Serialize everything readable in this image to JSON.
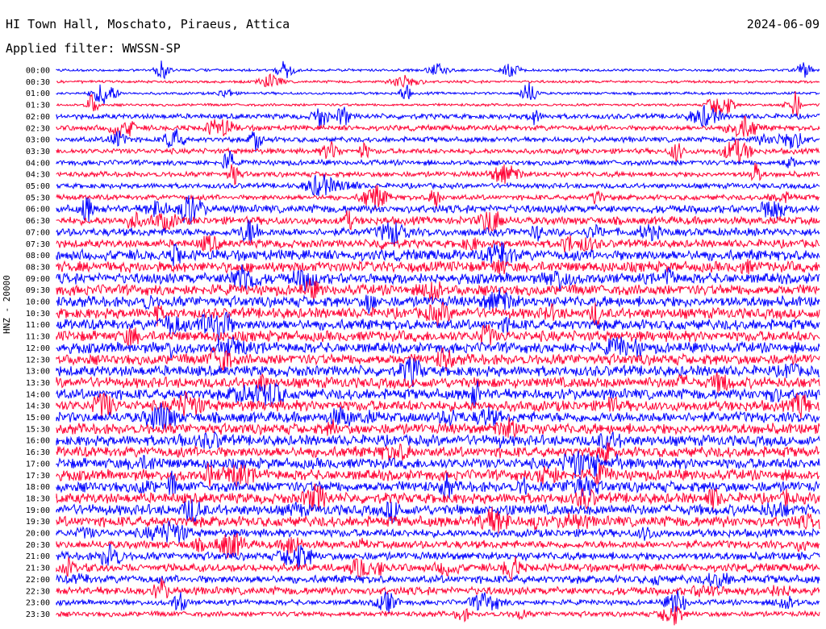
{
  "header": {
    "station": "HI Town Hall, Moschato, Piraeus, Attica",
    "date": "2024-06-09",
    "filter": "Applied filter: WWSSN-SP"
  },
  "chart_data": {
    "type": "line",
    "title": "HI Town Hall, Moschato, Piraeus, Attica",
    "ylabel": "HNZ - 20000",
    "xlabel": "",
    "colors": {
      "even": "#0000ff",
      "odd": "#ff0033"
    },
    "categories": [
      "00:00",
      "00:30",
      "01:00",
      "01:30",
      "02:00",
      "02:30",
      "03:00",
      "03:30",
      "04:00",
      "04:30",
      "05:00",
      "05:30",
      "06:00",
      "06:30",
      "07:00",
      "07:30",
      "08:00",
      "08:30",
      "09:00",
      "09:30",
      "10:00",
      "10:30",
      "11:00",
      "11:30",
      "12:00",
      "12:30",
      "13:00",
      "13:30",
      "14:00",
      "14:30",
      "15:00",
      "15:30",
      "16:00",
      "16:30",
      "17:00",
      "17:30",
      "18:00",
      "18:30",
      "19:00",
      "19:30",
      "20:00",
      "20:30",
      "21:00",
      "21:30",
      "22:00",
      "22:30",
      "23:00",
      "23:30"
    ],
    "noise_level": [
      1,
      1,
      1,
      1,
      2,
      2,
      2,
      2,
      2,
      2,
      2,
      2,
      3,
      3,
      3,
      3,
      4,
      4,
      4,
      4,
      4,
      4,
      4,
      4,
      4,
      4,
      4,
      4,
      4,
      4,
      4,
      4,
      4,
      4,
      4,
      4,
      4,
      4,
      4,
      4,
      3,
      3,
      3,
      3,
      3,
      3,
      2,
      2
    ]
  }
}
